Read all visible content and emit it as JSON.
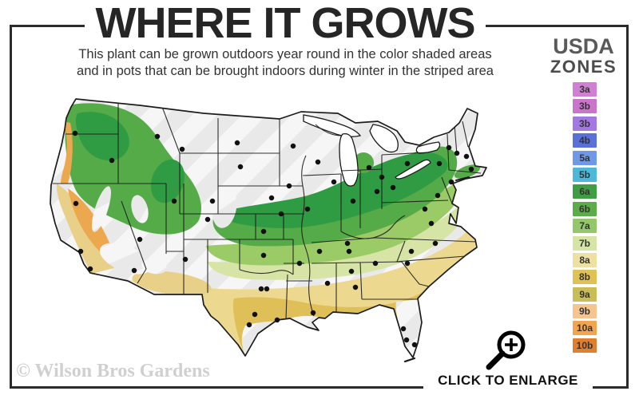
{
  "header": {
    "title": "WHERE IT GROWS",
    "subtitle_line1": "This plant can be grown outdoors year round in the color shaded areas",
    "subtitle_line2": "and in pots that can be brought indoors during winter in the striped area"
  },
  "legend": {
    "title_line1": "USDA",
    "title_line2": "ZONES",
    "zones": [
      {
        "label": "3a",
        "color": "#d07fd3"
      },
      {
        "label": "3b",
        "color": "#ca74ca"
      },
      {
        "label": "3b",
        "color": "#a478e2"
      },
      {
        "label": "4b",
        "color": "#5a71d8"
      },
      {
        "label": "5a",
        "color": "#6d99e8"
      },
      {
        "label": "5b",
        "color": "#4cb9d9"
      },
      {
        "label": "6a",
        "color": "#3f9e44"
      },
      {
        "label": "6b",
        "color": "#5bad49"
      },
      {
        "label": "7a",
        "color": "#93c76a"
      },
      {
        "label": "7b",
        "color": "#d6e5a5"
      },
      {
        "label": "8a",
        "color": "#eee0a0"
      },
      {
        "label": "8b",
        "color": "#e0c155"
      },
      {
        "label": "9a",
        "color": "#c9bd58"
      },
      {
        "label": "9b",
        "color": "#f5c48f"
      },
      {
        "label": "10a",
        "color": "#f2a44e"
      },
      {
        "label": "10b",
        "color": "#e07f30"
      }
    ]
  },
  "map": {
    "region": "United States hardiness zone map",
    "shaded_color_dark_green": "#2f9c44",
    "shaded_color_mid_green": "#55ab47",
    "shaded_color_light_green": "#9bcb67",
    "shaded_color_yellow": "#ecd88f",
    "shaded_color_gold": "#dfbf57",
    "shaded_color_orange": "#eba84f",
    "striped_area_color": "#e9e9e9"
  },
  "footer": {
    "watermark": "© Wilson Bros Gardens",
    "enlarge_label": "CLICK TO ENLARGE",
    "enlarge_icon": "magnifier-plus-icon"
  }
}
